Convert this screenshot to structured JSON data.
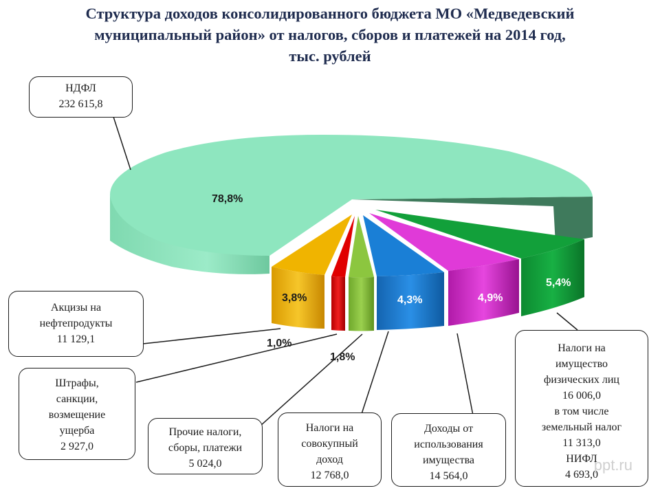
{
  "title": {
    "line1": "Структура доходов консолидированного бюджета МО «Медведевский",
    "line2": "муниципальный район» от налогов, сборов и платежей на 2014 год,",
    "line3": "тыс. рублей"
  },
  "colors": {
    "ndfl": "#8ee6bf",
    "excise": "#f0b400",
    "fines": "#e00000",
    "other": "#8cc63f",
    "aggregate": "#1a7fd6",
    "property_use": "#e03ad8",
    "property_tax": "#12a03a"
  },
  "chart_data": {
    "type": "pie",
    "title": "Структура доходов консолидированного бюджета МО «Медведевский муниципальный район» от налогов, сборов и платежей на 2014 год, тыс. рублей",
    "unit": "тыс. рублей",
    "slices": [
      {
        "key": "ndfl",
        "pct": 78.8,
        "pct_label": "78,8%",
        "value": 232615.8
      },
      {
        "key": "excise",
        "pct": 3.8,
        "pct_label": "3,8%",
        "value": 11129.1
      },
      {
        "key": "fines",
        "pct": 1.0,
        "pct_label": "1,0%",
        "value": 2927.0
      },
      {
        "key": "other",
        "pct": 1.8,
        "pct_label": "1,8%",
        "value": 5024.0
      },
      {
        "key": "aggregate",
        "pct": 4.3,
        "pct_label": "4,3%",
        "value": 12768.0
      },
      {
        "key": "property_use",
        "pct": 4.9,
        "pct_label": "4,9%",
        "value": 14564.0
      },
      {
        "key": "property_tax",
        "pct": 5.4,
        "pct_label": "5,4%",
        "value": 16006.0
      }
    ]
  },
  "callouts": {
    "ndfl": {
      "lines": [
        "НДФЛ",
        "232 615,8"
      ]
    },
    "excise": {
      "lines": [
        "Акцизы на",
        "нефтепродукты",
        "11 129,1"
      ]
    },
    "fines": {
      "lines": [
        "Штрафы,",
        "санкции,",
        "возмещение",
        "ущерба",
        "2 927,0"
      ]
    },
    "other": {
      "lines": [
        "Прочие налоги,",
        "сборы, платежи",
        "5 024,0"
      ]
    },
    "aggregate": {
      "lines": [
        "Налоги на",
        "совокупный",
        "доход",
        "12 768,0"
      ]
    },
    "property_use": {
      "lines": [
        "Доходы от",
        "использования",
        "имущества",
        "14 564,0"
      ]
    },
    "property_tax": {
      "lines": [
        "Налоги на",
        "имущество",
        "физических лиц",
        "16 006,0",
        "в том числе",
        "земельный налог",
        "11 313,0",
        "НИФЛ",
        "4 693,0"
      ]
    }
  },
  "watermark": "ppt.ru"
}
